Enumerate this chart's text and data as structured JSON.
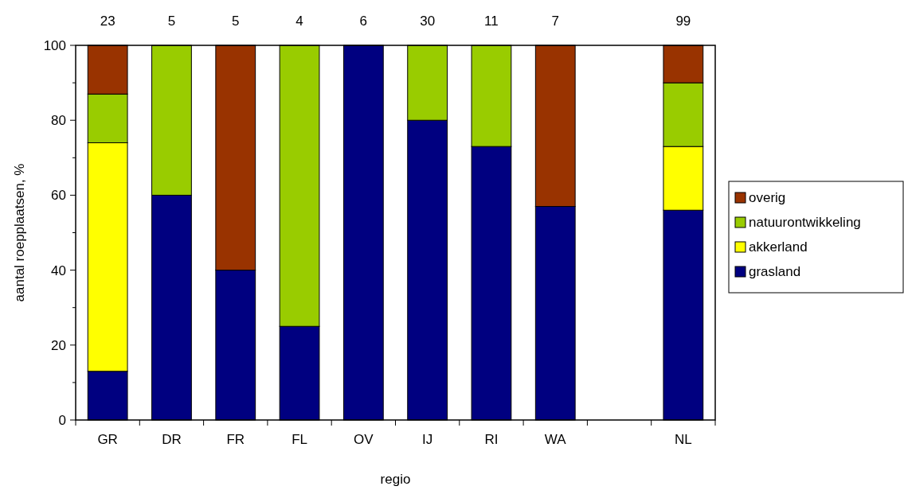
{
  "chart_data": {
    "type": "bar",
    "stacked": true,
    "xlabel": "regio",
    "ylabel": "aantal roepplaatsen, %",
    "categories": [
      "GR",
      "DR",
      "FR",
      "FL",
      "OV",
      "IJ",
      "RI",
      "WA",
      null,
      "NL"
    ],
    "series": [
      {
        "name": "grasland",
        "color": "#000080",
        "values": [
          13,
          60,
          40,
          25,
          100,
          80,
          73,
          57,
          null,
          56
        ]
      },
      {
        "name": "akkerland",
        "color": "#ffff00",
        "values": [
          61,
          0,
          0,
          0,
          0,
          0,
          0,
          0,
          null,
          17
        ]
      },
      {
        "name": "natuurontwikkeling",
        "color": "#99cc00",
        "values": [
          13,
          40,
          0,
          75,
          0,
          20,
          27,
          0,
          null,
          17
        ]
      },
      {
        "name": "overig",
        "color": "#993300",
        "values": [
          13,
          0,
          60,
          0,
          0,
          0,
          0,
          43,
          null,
          10
        ]
      }
    ],
    "ylim": [
      0,
      100
    ],
    "yticks": [
      0,
      {
        "value": 10,
        "label": null
      },
      20,
      {
        "value": 30,
        "label": null
      },
      40,
      {
        "value": 50,
        "label": null
      },
      60,
      {
        "value": 70,
        "label": null
      },
      80,
      {
        "value": 90,
        "label": null
      },
      100
    ],
    "annotations": [
      "23",
      "5",
      "5",
      "4",
      "6",
      "30",
      "11",
      "7",
      "99"
    ],
    "legend": "right",
    "grid": false
  }
}
